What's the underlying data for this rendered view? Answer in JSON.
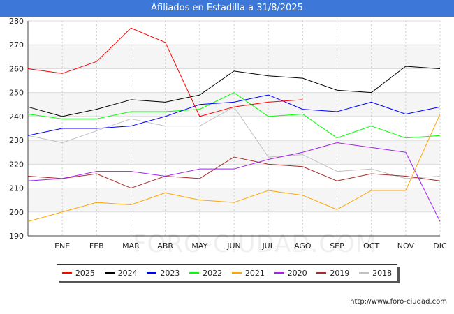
{
  "chart_data": {
    "type": "line",
    "title": "Afiliados en Estadilla a 31/8/2025",
    "xlabel": "",
    "ylabel": "",
    "x_slots": 12,
    "tick_labels": [
      "ENE",
      "FEB",
      "MAR",
      "ABR",
      "MAY",
      "JUN",
      "JUL",
      "AGO",
      "SEP",
      "OCT",
      "NOV",
      "DIC"
    ],
    "ylim": [
      190,
      280
    ],
    "yticks": [
      190,
      200,
      210,
      220,
      230,
      240,
      250,
      260,
      270,
      280
    ],
    "grid": true,
    "legend_position": "bottom",
    "series": [
      {
        "name": "2025",
        "color": "#ff0000",
        "values": [
          260,
          258,
          263,
          277,
          271,
          240,
          244,
          246,
          247
        ]
      },
      {
        "name": "2024",
        "color": "#000000",
        "values": [
          244,
          240,
          243,
          247,
          246,
          249,
          259,
          257,
          256,
          251,
          250,
          261,
          260
        ]
      },
      {
        "name": "2023",
        "color": "#0000ff",
        "values": [
          232,
          235,
          235,
          236,
          240,
          245,
          246,
          249,
          243,
          242,
          246,
          241,
          244
        ]
      },
      {
        "name": "2022",
        "color": "#00ff00",
        "values": [
          241,
          239,
          239,
          242,
          242,
          243,
          250,
          240,
          241,
          231,
          236,
          231,
          232
        ]
      },
      {
        "name": "2021",
        "color": "#ffa500",
        "values": [
          196,
          200,
          204,
          203,
          208,
          205,
          204,
          209,
          207,
          201,
          209,
          209,
          241
        ]
      },
      {
        "name": "2020",
        "color": "#a020f0",
        "values": [
          213,
          214,
          217,
          217,
          215,
          218,
          218,
          222,
          225,
          229,
          227,
          225,
          196
        ]
      },
      {
        "name": "2019",
        "color": "#a52a2a",
        "values": [
          215,
          214,
          216,
          210,
          215,
          214,
          223,
          220,
          219,
          213,
          216,
          215,
          213
        ]
      },
      {
        "name": "2018",
        "color": "#c0c0c0",
        "values": [
          232,
          229,
          234,
          239,
          236,
          236,
          244,
          223,
          224,
          217,
          218,
          214,
          215
        ]
      }
    ]
  },
  "source_text": "http://www.foro-ciudad.com",
  "watermark_text": "FORO-CIUDAD.COM"
}
